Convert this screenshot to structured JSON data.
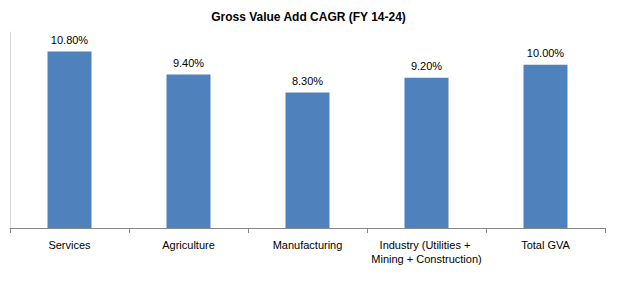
{
  "chart_data": {
    "type": "bar",
    "title": "Gross Value Add CAGR (FY 14-24)",
    "categories": [
      "Services",
      "Agriculture",
      "Manufacturing",
      "Industry (Utilities + Mining + Construction)",
      "Total GVA"
    ],
    "values": [
      10.8,
      9.4,
      8.3,
      9.2,
      10.0
    ],
    "value_labels": [
      "10.80%",
      "9.40%",
      "8.30%",
      "9.20%",
      "10.00%"
    ],
    "color": "#4f81bd",
    "ylim": [
      0,
      12
    ],
    "grid": false,
    "data_labels": true,
    "tick_labels": "x"
  }
}
